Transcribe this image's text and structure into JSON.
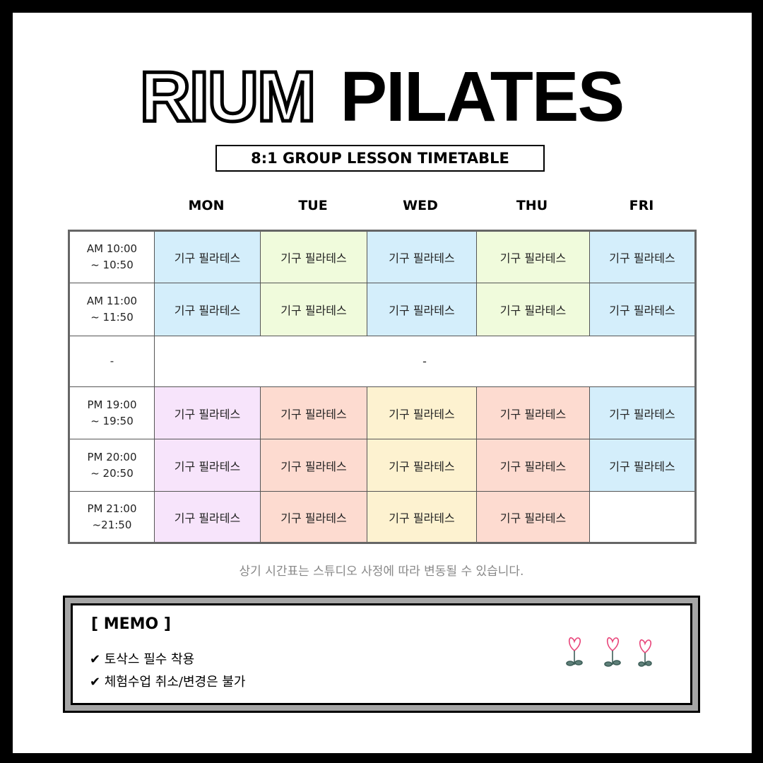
{
  "title": {
    "outline": "RIUM",
    "solid": "PILATES"
  },
  "subtitle": "8:1 GROUP LESSON TIMETABLE",
  "days": [
    "MON",
    "TUE",
    "WED",
    "THU",
    "FRI"
  ],
  "colors": {
    "blue": "#d4eefb",
    "green": "#f0fbdc",
    "lavender": "#f7e4fb",
    "salmon": "#fddbd0",
    "yellow": "#fdf2d0",
    "white": "#ffffff"
  },
  "rows": [
    {
      "time1": "AM 10:00",
      "time2": "~ 10:50",
      "cells": [
        {
          "text": "기구 필라테스",
          "color": "blue"
        },
        {
          "text": "기구 필라테스",
          "color": "green"
        },
        {
          "text": "기구 필라테스",
          "color": "blue"
        },
        {
          "text": "기구 필라테스",
          "color": "green"
        },
        {
          "text": "기구 필라테스",
          "color": "blue"
        }
      ]
    },
    {
      "time1": "AM 11:00",
      "time2": "~ 11:50",
      "cells": [
        {
          "text": "기구 필라테스",
          "color": "blue"
        },
        {
          "text": "기구 필라테스",
          "color": "green"
        },
        {
          "text": "기구 필라테스",
          "color": "blue"
        },
        {
          "text": "기구 필라테스",
          "color": "green"
        },
        {
          "text": "기구 필라테스",
          "color": "blue"
        }
      ]
    },
    {
      "time1": "-",
      "time2": "",
      "break": "-"
    },
    {
      "time1": "PM 19:00",
      "time2": "~ 19:50",
      "cells": [
        {
          "text": "기구 필라테스",
          "color": "lavender"
        },
        {
          "text": "기구 필라테스",
          "color": "salmon"
        },
        {
          "text": "기구 필라테스",
          "color": "yellow"
        },
        {
          "text": "기구 필라테스",
          "color": "salmon"
        },
        {
          "text": "기구 필라테스",
          "color": "blue"
        }
      ]
    },
    {
      "time1": "PM 20:00",
      "time2": "~ 20:50",
      "cells": [
        {
          "text": "기구 필라테스",
          "color": "lavender"
        },
        {
          "text": "기구 필라테스",
          "color": "salmon"
        },
        {
          "text": "기구 필라테스",
          "color": "yellow"
        },
        {
          "text": "기구 필라테스",
          "color": "salmon"
        },
        {
          "text": "기구 필라테스",
          "color": "blue"
        }
      ]
    },
    {
      "time1": "PM 21:00",
      "time2": "~21:50",
      "cells": [
        {
          "text": "기구 필라테스",
          "color": "lavender"
        },
        {
          "text": "기구 필라테스",
          "color": "salmon"
        },
        {
          "text": "기구 필라테스",
          "color": "yellow"
        },
        {
          "text": "기구 필라테스",
          "color": "salmon"
        },
        {
          "text": "",
          "color": "white"
        }
      ]
    }
  ],
  "note": "상기 시간표는 스튜디오 사정에 따라 변동될 수 있습니다.",
  "memo": {
    "title": "[ MEMO ]",
    "items": [
      "✔ 토삭스 필수 착용",
      "✔ 체험수업 취소/변경은 불가"
    ]
  }
}
